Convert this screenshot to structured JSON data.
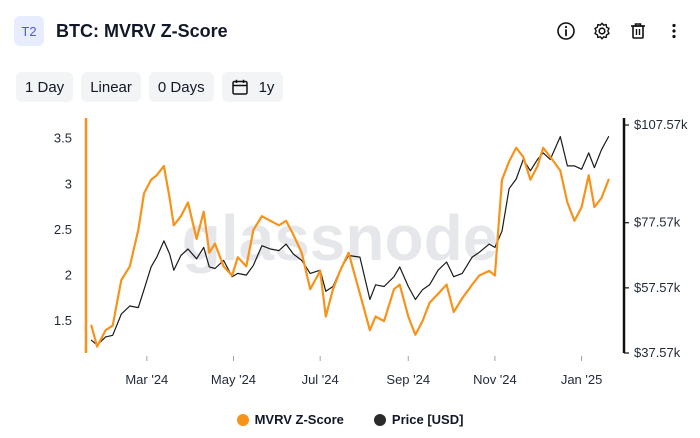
{
  "header": {
    "tag": "T2",
    "title": "BTC: MVRV Z-Score",
    "icons": [
      "info-icon",
      "gear-icon",
      "trash-icon",
      "more-vertical-icon"
    ]
  },
  "toolbar": {
    "resolution": "1 Day",
    "scale": "Linear",
    "smoothing": "0 Days",
    "range": "1y",
    "range_icon": "calendar-icon"
  },
  "colors": {
    "mvrv": "#f7931a",
    "price": "#1a1a1a",
    "tag_bg": "#e8ecff",
    "tag_text": "#4f5bd5"
  },
  "legend": {
    "mvrv": "MVRV Z-Score",
    "price": "Price [USD]"
  },
  "watermark": "glassnode",
  "chart_data": {
    "type": "line",
    "x_tick_labels": [
      "Mar '24",
      "May '24",
      "Jul '24",
      "Sep '24",
      "Nov '24",
      "Jan '25"
    ],
    "x_ticks": [
      "2024-03-01",
      "2024-05-01",
      "2024-07-01",
      "2024-09-01",
      "2024-11-01",
      "2025-01-01"
    ],
    "x_range": [
      "2024-01-21",
      "2025-01-21"
    ],
    "left_axis": {
      "ticks": [
        1.5,
        2,
        2.5,
        3,
        3.5
      ],
      "tick_labels": [
        "1.5",
        "2",
        "2.5",
        "3",
        "3.5"
      ],
      "ylim": [
        1.15,
        3.65
      ]
    },
    "right_axis": {
      "ticks": [
        37570,
        57570,
        77570,
        107570
      ],
      "tick_labels": [
        "$37.57k",
        "$57.57k",
        "$77.57k",
        "$107.57k"
      ],
      "ylim": [
        37570,
        107570
      ]
    },
    "series": [
      {
        "name": "MVRV Z-Score",
        "axis": "left",
        "x": [
          "2024-01-22",
          "2024-01-26",
          "2024-02-01",
          "2024-02-06",
          "2024-02-12",
          "2024-02-18",
          "2024-02-24",
          "2024-02-28",
          "2024-03-04",
          "2024-03-08",
          "2024-03-13",
          "2024-03-17",
          "2024-03-20",
          "2024-03-25",
          "2024-03-30",
          "2024-04-05",
          "2024-04-10",
          "2024-04-14",
          "2024-04-18",
          "2024-04-24",
          "2024-04-30",
          "2024-05-04",
          "2024-05-10",
          "2024-05-15",
          "2024-05-21",
          "2024-05-27",
          "2024-06-02",
          "2024-06-07",
          "2024-06-12",
          "2024-06-18",
          "2024-06-24",
          "2024-07-01",
          "2024-07-05",
          "2024-07-10",
          "2024-07-15",
          "2024-07-21",
          "2024-07-29",
          "2024-08-05",
          "2024-08-09",
          "2024-08-15",
          "2024-08-22",
          "2024-08-26",
          "2024-09-01",
          "2024-09-06",
          "2024-09-11",
          "2024-09-16",
          "2024-09-22",
          "2024-09-28",
          "2024-10-03",
          "2024-10-09",
          "2024-10-16",
          "2024-10-21",
          "2024-10-28",
          "2024-11-01",
          "2024-11-06",
          "2024-11-11",
          "2024-11-16",
          "2024-11-21",
          "2024-11-26",
          "2024-12-01",
          "2024-12-05",
          "2024-12-10",
          "2024-12-17",
          "2024-12-22",
          "2024-12-27",
          "2025-01-01",
          "2025-01-06",
          "2025-01-10",
          "2025-01-15",
          "2025-01-20"
        ],
        "values": [
          1.45,
          1.22,
          1.4,
          1.45,
          1.95,
          2.1,
          2.5,
          2.9,
          3.05,
          3.1,
          3.2,
          2.85,
          2.55,
          2.65,
          2.8,
          2.4,
          2.7,
          2.25,
          2.35,
          2.1,
          2.0,
          2.2,
          2.1,
          2.5,
          2.65,
          2.6,
          2.55,
          2.6,
          2.45,
          2.25,
          1.85,
          2.05,
          1.55,
          1.85,
          2.05,
          2.25,
          1.8,
          1.4,
          1.55,
          1.5,
          1.85,
          1.9,
          1.55,
          1.35,
          1.5,
          1.7,
          1.8,
          1.9,
          1.6,
          1.75,
          1.9,
          2.0,
          2.05,
          2.0,
          3.05,
          3.25,
          3.4,
          3.3,
          3.05,
          3.2,
          3.4,
          3.3,
          3.15,
          2.8,
          2.6,
          2.75,
          3.1,
          2.75,
          2.85,
          3.05
        ]
      },
      {
        "name": "Price [USD]",
        "axis": "right",
        "x": [
          "2024-01-22",
          "2024-01-26",
          "2024-02-01",
          "2024-02-06",
          "2024-02-12",
          "2024-02-18",
          "2024-02-24",
          "2024-02-28",
          "2024-03-04",
          "2024-03-08",
          "2024-03-13",
          "2024-03-17",
          "2024-03-20",
          "2024-03-25",
          "2024-03-30",
          "2024-04-05",
          "2024-04-10",
          "2024-04-14",
          "2024-04-18",
          "2024-04-24",
          "2024-04-30",
          "2024-05-04",
          "2024-05-10",
          "2024-05-15",
          "2024-05-21",
          "2024-05-27",
          "2024-06-02",
          "2024-06-07",
          "2024-06-12",
          "2024-06-18",
          "2024-06-24",
          "2024-07-01",
          "2024-07-05",
          "2024-07-10",
          "2024-07-15",
          "2024-07-21",
          "2024-07-29",
          "2024-08-05",
          "2024-08-09",
          "2024-08-15",
          "2024-08-22",
          "2024-08-26",
          "2024-09-01",
          "2024-09-06",
          "2024-09-11",
          "2024-09-16",
          "2024-09-22",
          "2024-09-28",
          "2024-10-03",
          "2024-10-09",
          "2024-10-16",
          "2024-10-21",
          "2024-10-28",
          "2024-11-01",
          "2024-11-06",
          "2024-11-11",
          "2024-11-16",
          "2024-11-21",
          "2024-11-26",
          "2024-12-01",
          "2024-12-05",
          "2024-12-10",
          "2024-12-17",
          "2024-12-22",
          "2024-12-27",
          "2025-01-01",
          "2025-01-06",
          "2025-01-10",
          "2025-01-15",
          "2025-01-20"
        ],
        "values": [
          41500,
          40000,
          42500,
          43000,
          49500,
          52000,
          51500,
          57000,
          64000,
          67000,
          72000,
          68000,
          63000,
          67500,
          69500,
          66500,
          70000,
          64000,
          63500,
          66000,
          61000,
          62000,
          61500,
          64500,
          70500,
          69500,
          69000,
          71000,
          68000,
          66000,
          62000,
          63000,
          56500,
          58000,
          63000,
          67500,
          67000,
          54000,
          58500,
          58000,
          61000,
          64000,
          58000,
          54000,
          57000,
          58500,
          63000,
          65500,
          61000,
          62000,
          67000,
          68500,
          71000,
          70000,
          75000,
          88000,
          91000,
          97000,
          93500,
          97000,
          99000,
          97000,
          104000,
          95000,
          95000,
          94000,
          99000,
          94500,
          100000,
          104000
        ]
      }
    ]
  }
}
